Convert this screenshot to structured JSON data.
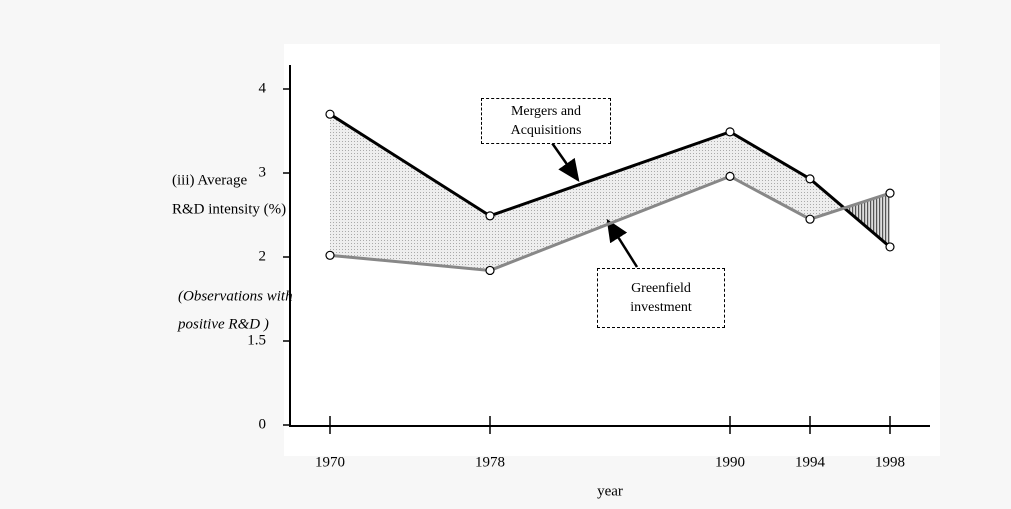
{
  "chart_data": {
    "type": "line",
    "y_label": [
      "(iii)  Average",
      "R&D intensity (%)"
    ],
    "note": [
      "(Observations with",
      "positive R&D )"
    ],
    "x_label": "year",
    "x": [
      1970,
      1978,
      1990,
      1994,
      1998
    ],
    "xlim": [
      1968,
      2000
    ],
    "xticks": [
      1970,
      1978,
      1990,
      1994,
      1998
    ],
    "ylim": [
      0,
      4.3
    ],
    "yticks": [
      0,
      1.5,
      2,
      3,
      4
    ],
    "series": [
      {
        "name": "Mergers and Acquisitions",
        "color": "#000000",
        "values": [
          3.7,
          2.49,
          3.49,
          2.93,
          2.12
        ]
      },
      {
        "name": "Greenfield investment",
        "color": "#888888",
        "values": [
          2.02,
          1.92,
          2.96,
          2.45,
          2.76
        ]
      }
    ]
  }
}
